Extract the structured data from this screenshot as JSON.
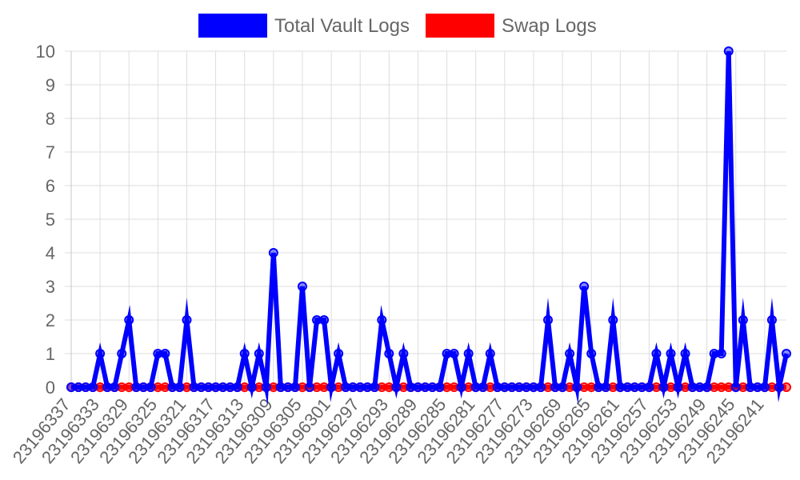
{
  "chart_data": {
    "type": "line",
    "legend_position": "top-center",
    "grid": true,
    "ylim": [
      0,
      10
    ],
    "y_ticks": [
      0,
      1,
      2,
      3,
      4,
      5,
      6,
      7,
      8,
      9,
      10
    ],
    "x_order": "descending",
    "x_range": [
      23196337,
      23196238
    ],
    "x_tick_labels": [
      "23196337",
      "23196333",
      "23196329",
      "23196325",
      "23196321",
      "23196317",
      "23196313",
      "23196309",
      "23196305",
      "23196301",
      "23196297",
      "23196293",
      "23196289",
      "23196285",
      "23196281",
      "23196277",
      "23196273",
      "23196269",
      "23196265",
      "23196261",
      "23196257",
      "23196253",
      "23196249",
      "23196245",
      "23196241"
    ],
    "series": [
      {
        "name": "Total Vault Logs",
        "color": "#0000ff",
        "values": [
          0,
          0,
          0,
          0,
          1,
          0,
          0,
          1,
          2,
          0,
          0,
          0,
          1,
          1,
          0,
          0,
          2,
          0,
          0,
          0,
          0,
          0,
          0,
          0,
          1,
          0,
          1,
          0,
          4,
          0,
          0,
          0,
          3,
          0,
          2,
          2,
          0,
          1,
          0,
          0,
          0,
          0,
          0,
          2,
          1,
          0,
          1,
          0,
          0,
          0,
          0,
          0,
          1,
          1,
          0,
          1,
          0,
          0,
          1,
          0,
          0,
          0,
          0,
          0,
          0,
          0,
          2,
          0,
          0,
          1,
          0,
          3,
          1,
          0,
          0,
          2,
          0,
          0,
          0,
          0,
          0,
          1,
          0,
          1,
          0,
          1,
          0,
          0,
          0,
          1,
          1,
          10,
          0,
          2,
          0,
          0,
          0,
          2,
          0,
          1
        ]
      },
      {
        "name": "Swap Logs",
        "color": "#ff0000",
        "values": [
          0,
          0,
          0,
          0,
          0,
          0,
          0,
          0,
          0,
          0,
          0,
          0,
          0,
          0,
          0,
          0,
          0,
          0,
          0,
          0,
          0,
          0,
          0,
          0,
          0,
          0,
          0,
          0,
          0,
          0,
          0,
          0,
          0,
          0,
          0,
          0,
          0,
          0,
          0,
          0,
          0,
          0,
          0,
          0,
          0,
          0,
          0,
          0,
          0,
          0,
          0,
          0,
          0,
          0,
          0,
          0,
          0,
          0,
          0,
          0,
          0,
          0,
          0,
          0,
          0,
          0,
          0,
          0,
          0,
          0,
          0,
          0,
          0,
          0,
          0,
          0,
          0,
          0,
          0,
          0,
          0,
          0,
          0,
          0,
          0,
          0,
          0,
          0,
          0,
          0,
          0,
          0,
          0,
          0,
          0,
          0,
          0,
          0,
          0,
          0
        ]
      }
    ]
  }
}
